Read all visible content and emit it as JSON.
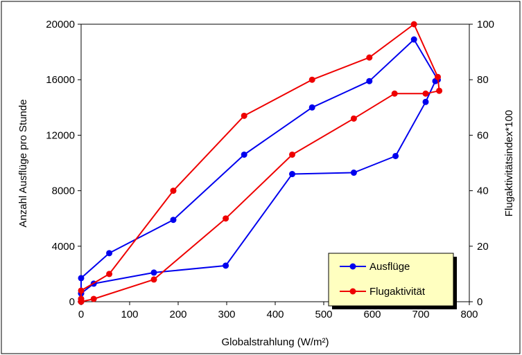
{
  "chart_data": {
    "type": "line",
    "title": "",
    "xlabel": "Globalstrahlung (W/m²)",
    "ylabel": "Anzahl Ausflüge pro Stunde",
    "y2label": "Flugaktivitätsindex*100",
    "xlim": [
      0,
      800
    ],
    "ylim": [
      0,
      20000
    ],
    "y2lim": [
      0,
      100
    ],
    "x_ticks": [
      "0",
      "100",
      "200",
      "300",
      "400",
      "500",
      "600",
      "700",
      "800"
    ],
    "y_ticks": [
      "0",
      "4000",
      "8000",
      "12000",
      "16000",
      "20000"
    ],
    "y2_ticks": [
      "0",
      "20",
      "40",
      "60",
      "80",
      "100"
    ],
    "grid": false,
    "legend_position": "bottom-right",
    "series": [
      {
        "name": "Ausflüge",
        "axis": "left",
        "color": "#0000ee",
        "points": [
          [
            0,
            0
          ],
          [
            0,
            200
          ],
          [
            0,
            600
          ],
          [
            0,
            1700
          ],
          [
            58,
            3500
          ],
          [
            190,
            5900
          ],
          [
            336,
            10600
          ],
          [
            476,
            14000
          ],
          [
            594,
            15900
          ],
          [
            686,
            18900
          ],
          [
            735,
            16000
          ],
          [
            730,
            15900
          ],
          [
            710,
            14400
          ],
          [
            648,
            10500
          ],
          [
            562,
            9300
          ],
          [
            435,
            9200
          ],
          [
            298,
            2600
          ],
          [
            150,
            2100
          ],
          [
            26,
            1300
          ],
          [
            0,
            600
          ]
        ]
      },
      {
        "name": "Flugaktivität",
        "axis": "right",
        "color": "#ee0000",
        "points": [
          [
            0,
            0
          ],
          [
            0,
            1
          ],
          [
            0,
            4
          ],
          [
            58,
            10
          ],
          [
            190,
            40
          ],
          [
            336,
            67
          ],
          [
            476,
            80
          ],
          [
            594,
            88
          ],
          [
            686,
            100
          ],
          [
            735,
            81
          ],
          [
            738,
            76
          ],
          [
            710,
            75
          ],
          [
            646,
            75
          ],
          [
            562,
            66
          ],
          [
            435,
            53
          ],
          [
            298,
            30
          ],
          [
            150,
            8
          ],
          [
            26,
            1
          ],
          [
            0,
            0
          ]
        ]
      }
    ]
  }
}
